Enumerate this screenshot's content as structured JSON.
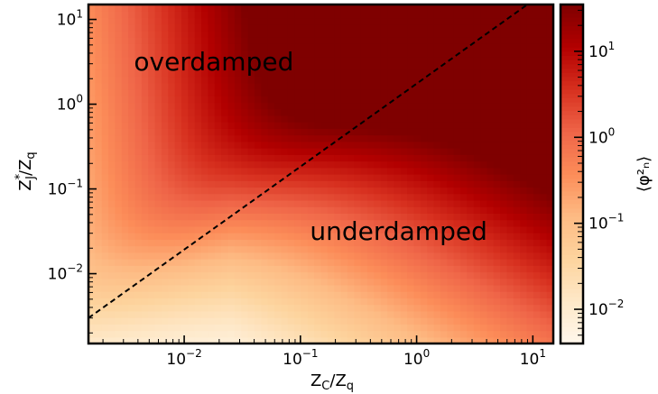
{
  "chart_data": {
    "type": "heatmap",
    "title": "",
    "x_scale": "log",
    "y_scale": "log",
    "colorbar_scale": "log",
    "colormap": "OrRd",
    "colors": {
      "low": "#fff7ec",
      "mid": "#fc8d59",
      "high": "#7f0000",
      "line": "#000000"
    },
    "xlabel_main": "Z",
    "xlabel_sub1": "C",
    "xlabel_slash": "/Z",
    "xlabel_sub2": "q",
    "ylabel_main": "Z",
    "ylabel_sup": "*",
    "ylabel_sub1": "J",
    "ylabel_slash": "/Z",
    "ylabel_sub2": "q",
    "colorbar_label": "⟨φ²ₙ⟩",
    "xlim": [
      0.0015,
      15
    ],
    "ylim": [
      0.0015,
      15
    ],
    "clim": [
      0.004,
      35
    ],
    "x_ticks": [
      {
        "value": 0.01,
        "base": "10",
        "exp": "−2"
      },
      {
        "value": 0.1,
        "base": "10",
        "exp": "−1"
      },
      {
        "value": 1,
        "base": "10",
        "exp": "0"
      },
      {
        "value": 10,
        "base": "10",
        "exp": "1"
      }
    ],
    "y_ticks": [
      {
        "value": 0.01,
        "base": "10",
        "exp": "−2"
      },
      {
        "value": 0.1,
        "base": "10",
        "exp": "−1"
      },
      {
        "value": 1,
        "base": "10",
        "exp": "0"
      },
      {
        "value": 10,
        "base": "10",
        "exp": "1"
      }
    ],
    "colorbar_ticks": [
      {
        "value": 0.01,
        "base": "10",
        "exp": "−2"
      },
      {
        "value": 0.1,
        "base": "10",
        "exp": "−1"
      },
      {
        "value": 1,
        "base": "10",
        "exp": "0"
      },
      {
        "value": 10,
        "base": "10",
        "exp": "1"
      }
    ],
    "boundary_line": {
      "style": "dashed",
      "points": [
        [
          0.0015,
          0.003
        ],
        [
          9,
          15
        ]
      ]
    },
    "annotations": [
      {
        "text": "overdamped",
        "x": 0.018,
        "y": 2.5
      },
      {
        "text": "underdamped",
        "x": 0.7,
        "y": 0.025
      }
    ]
  }
}
